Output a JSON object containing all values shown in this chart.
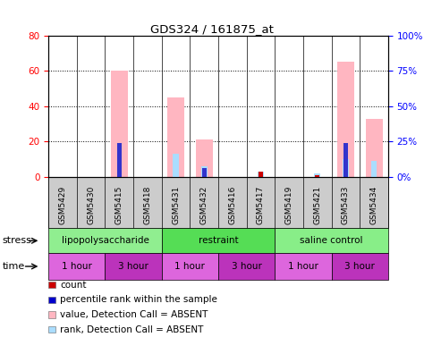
{
  "title": "GDS324 / 161875_at",
  "samples": [
    "GSM5429",
    "GSM5430",
    "GSM5415",
    "GSM5418",
    "GSM5431",
    "GSM5432",
    "GSM5416",
    "GSM5417",
    "GSM5419",
    "GSM5421",
    "GSM5433",
    "GSM5434"
  ],
  "left_ylim": [
    0,
    80
  ],
  "right_ylim": [
    0,
    100
  ],
  "left_yticks": [
    0,
    20,
    40,
    60,
    80
  ],
  "right_yticks": [
    0,
    25,
    50,
    75,
    100
  ],
  "left_yticklabels": [
    "0",
    "20",
    "40",
    "60",
    "80"
  ],
  "right_yticklabels": [
    "0%",
    "25%",
    "50%",
    "75%",
    "100%"
  ],
  "bar_pink_heights": [
    0,
    0,
    60,
    0,
    45,
    21,
    0,
    0,
    0,
    0,
    65,
    33
  ],
  "bar_lightblue_heights": [
    0,
    0,
    0,
    0,
    13,
    6,
    0,
    3,
    0,
    2,
    10,
    9
  ],
  "bar_red_heights": [
    0,
    0,
    0,
    0,
    0,
    0,
    0,
    3,
    0,
    1,
    0,
    0
  ],
  "bar_darkblue_heights": [
    0,
    0,
    19,
    0,
    0,
    5,
    0,
    0,
    0,
    0,
    19,
    0
  ],
  "stress_groups": [
    {
      "label": "lipopolysaccharide",
      "start": 0,
      "end": 4,
      "color": "#90EE90"
    },
    {
      "label": "restraint",
      "start": 4,
      "end": 8,
      "color": "#55DD55"
    },
    {
      "label": "saline control",
      "start": 8,
      "end": 12,
      "color": "#88EE88"
    }
  ],
  "time_groups": [
    {
      "label": "1 hour",
      "start": 0,
      "end": 2,
      "color": "#DD66DD"
    },
    {
      "label": "3 hour",
      "start": 2,
      "end": 4,
      "color": "#BB33BB"
    },
    {
      "label": "1 hour",
      "start": 4,
      "end": 6,
      "color": "#DD66DD"
    },
    {
      "label": "3 hour",
      "start": 6,
      "end": 8,
      "color": "#BB33BB"
    },
    {
      "label": "1 hour",
      "start": 8,
      "end": 10,
      "color": "#DD66DD"
    },
    {
      "label": "3 hour",
      "start": 10,
      "end": 12,
      "color": "#BB33BB"
    }
  ],
  "legend_items": [
    {
      "color": "#CC0000",
      "label": "count"
    },
    {
      "color": "#0000CC",
      "label": "percentile rank within the sample"
    },
    {
      "color": "#FFB6C1",
      "label": "value, Detection Call = ABSENT"
    },
    {
      "color": "#AADDFF",
      "label": "rank, Detection Call = ABSENT"
    }
  ],
  "bar_width": 0.6,
  "bg_color": "white"
}
